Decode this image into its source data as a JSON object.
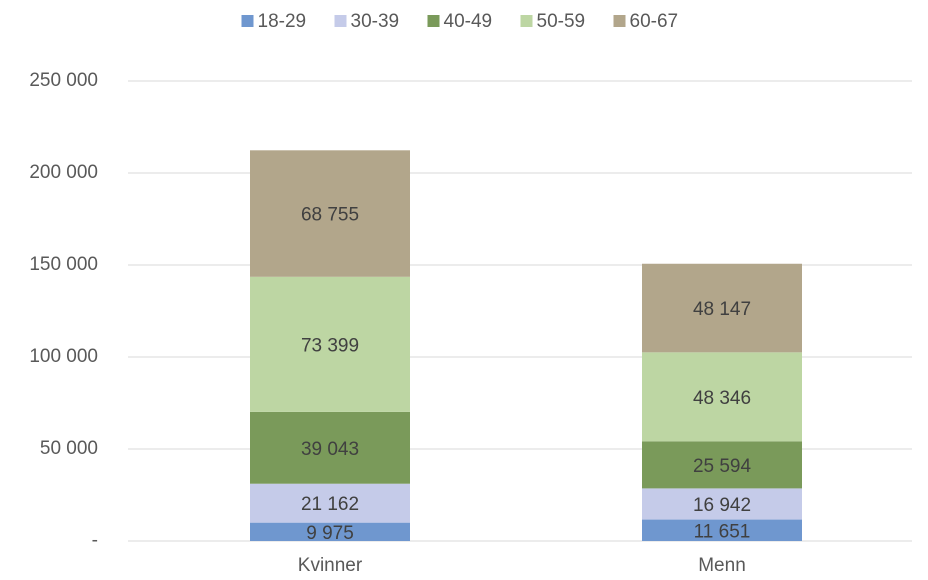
{
  "chart_data": {
    "type": "stacked_bar",
    "categories": [
      "Kvinner",
      "Menn"
    ],
    "series": [
      {
        "name": "18-29",
        "color": "#6f97cf",
        "values": [
          9975,
          11651
        ],
        "value_labels": [
          "9 975",
          "11 651"
        ]
      },
      {
        "name": "30-39",
        "color": "#c5cbe9",
        "values": [
          21162,
          16942
        ],
        "value_labels": [
          "21 162",
          "16 942"
        ]
      },
      {
        "name": "40-49",
        "color": "#7a9a5a",
        "values": [
          39043,
          25594
        ],
        "value_labels": [
          "39 043",
          "25 594"
        ]
      },
      {
        "name": "50-59",
        "color": "#bdd6a3",
        "values": [
          73399,
          48346
        ],
        "value_labels": [
          "73 399",
          "48 346"
        ]
      },
      {
        "name": "60-67",
        "color": "#b2a68b",
        "values": [
          68755,
          48147
        ],
        "value_labels": [
          "68 755",
          "48 147"
        ]
      }
    ],
    "ylim": [
      0,
      250000
    ],
    "yticks": [
      {
        "value": 0,
        "label": "-"
      },
      {
        "value": 50000,
        "label": "50 000"
      },
      {
        "value": 100000,
        "label": "100 000"
      },
      {
        "value": 150000,
        "label": "150 000"
      },
      {
        "value": 200000,
        "label": "200 000"
      },
      {
        "value": 250000,
        "label": "250 000"
      }
    ],
    "grid": true,
    "legend": "top"
  }
}
